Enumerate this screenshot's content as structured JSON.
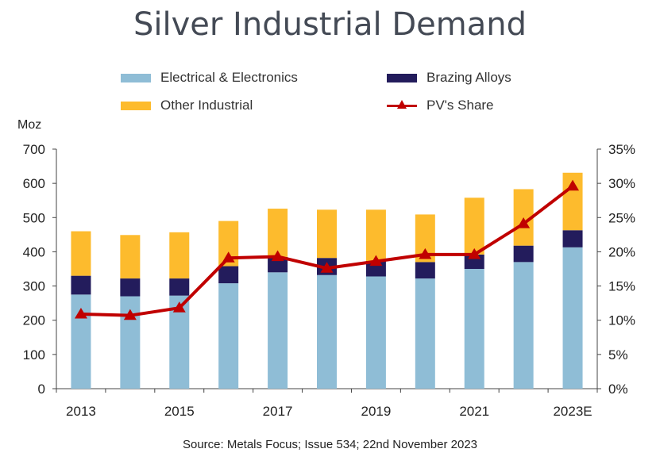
{
  "title": "Silver Industrial Demand",
  "source": "Source: Metals Focus; Issue 534; 22nd November 2023",
  "colors": {
    "electrical": "#8fbdd6",
    "brazing": "#231c5c",
    "other": "#fdbb2d",
    "pv": "#c00000",
    "axis": "#444444"
  },
  "chart_data": {
    "type": "bar",
    "stacked": true,
    "categories": [
      "2013",
      "2014",
      "2015",
      "2016",
      "2017",
      "2018",
      "2019",
      "2020",
      "2021",
      "2022",
      "2023E"
    ],
    "x_tick_labels": [
      "2013",
      "",
      "2015",
      "",
      "2017",
      "",
      "2019",
      "",
      "2021",
      "",
      "2023E"
    ],
    "ylabel": "Moz",
    "ylim": [
      0,
      700
    ],
    "yticks": [
      0,
      100,
      200,
      300,
      400,
      500,
      600,
      700
    ],
    "y2lim": [
      0,
      35
    ],
    "y2ticks": [
      "0%",
      "5%",
      "10%",
      "15%",
      "20%",
      "25%",
      "30%",
      "35%"
    ],
    "legend": [
      "Electrical & Electronics",
      "Brazing Alloys",
      "Other Industrial",
      "PV's Share"
    ],
    "series": [
      {
        "name": "Electrical & Electronics",
        "values": [
          275,
          270,
          272,
          308,
          340,
          332,
          328,
          322,
          350,
          370,
          413
        ]
      },
      {
        "name": "Brazing Alloys",
        "values": [
          55,
          52,
          50,
          50,
          45,
          50,
          45,
          48,
          42,
          48,
          50
        ]
      },
      {
        "name": "Other Industrial",
        "values": [
          130,
          127,
          135,
          132,
          141,
          141,
          150,
          139,
          166,
          165,
          168
        ]
      },
      {
        "name": "PV's Share",
        "axis": "right",
        "type": "line",
        "values": [
          10.9,
          10.7,
          11.8,
          19.1,
          19.3,
          17.6,
          18.6,
          19.6,
          19.6,
          24.1,
          29.6
        ]
      }
    ]
  }
}
